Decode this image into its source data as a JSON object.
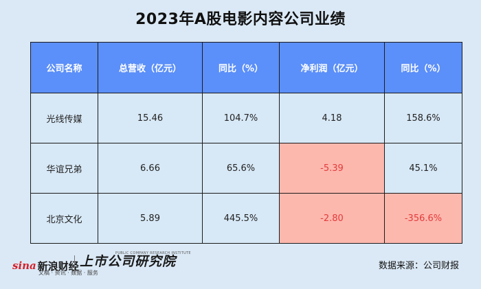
{
  "title": "2023年A股电影内容公司业绩",
  "table": {
    "headers": [
      "公司名称",
      "总营收（亿元）",
      "同比（%）",
      "净利润（亿元）",
      "同比（%）"
    ],
    "rows": [
      [
        "光线传媒",
        "15.46",
        "104.7%",
        "4.18",
        "158.6%"
      ],
      [
        "华谊兄弟",
        "6.66",
        "65.6%",
        "-5.39",
        "45.1%"
      ],
      [
        "北京文化",
        "5.89",
        "445.5%",
        "-2.80",
        "-356.6%"
      ]
    ]
  },
  "colors": {
    "header_bg": "#5b8ff9",
    "row_bg": "#d7e8f6",
    "highlight_bg": "#fdb8ae",
    "negative_text": "#e23b3b",
    "page_bg": "#dbe9f6"
  },
  "footer": {
    "sina_mark": "sina",
    "sina_name": "新浪财经",
    "sina_sub": "文稿 · 资讯 · 数据 · 服务",
    "research_name": "上市公司研究院",
    "research_en": "PUBLIC COMPANY RESEARCH INSTITUTE",
    "source": "数据来源：公司财报"
  }
}
